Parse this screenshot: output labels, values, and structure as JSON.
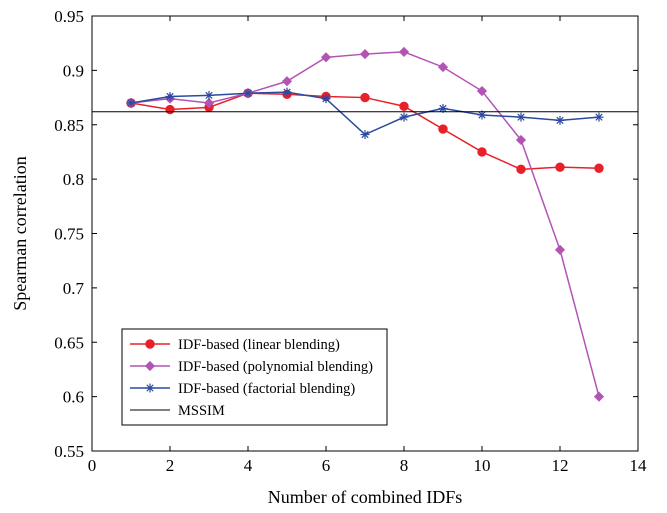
{
  "chart_data": {
    "type": "line",
    "title": "",
    "xlabel": "Number of combined IDFs",
    "ylabel": "Spearman correlation",
    "xlim": [
      0,
      14
    ],
    "ylim": [
      0.55,
      0.95
    ],
    "xticks": [
      0,
      2,
      4,
      6,
      8,
      10,
      12,
      14
    ],
    "yticks": [
      0.55,
      0.6,
      0.65,
      0.7,
      0.75,
      0.8,
      0.85,
      0.9,
      0.95
    ],
    "xtick_labels": [
      "0",
      "2",
      "4",
      "6",
      "8",
      "10",
      "12",
      "14"
    ],
    "ytick_labels": [
      "0.55",
      "0.6",
      "0.65",
      "0.7",
      "0.75",
      "0.8",
      "0.85",
      "0.9",
      "0.95"
    ],
    "grid": false,
    "legend_position": "bottom-left",
    "x": [
      1,
      2,
      3,
      4,
      5,
      6,
      7,
      8,
      9,
      10,
      11,
      12,
      13
    ],
    "series": [
      {
        "name": "IDF-based (linear blending)",
        "color": "#e8202a",
        "marker": "circle",
        "values": [
          0.87,
          0.864,
          0.866,
          0.879,
          0.878,
          0.876,
          0.875,
          0.867,
          0.846,
          0.825,
          0.809,
          0.811,
          0.81
        ]
      },
      {
        "name": "IDF-based (polynomial blending)",
        "color": "#b354b5",
        "marker": "diamond",
        "values": [
          0.87,
          0.874,
          0.87,
          0.879,
          0.89,
          0.912,
          0.915,
          0.917,
          0.903,
          0.881,
          0.836,
          0.735,
          0.6
        ]
      },
      {
        "name": "IDF-based (factorial blending)",
        "color": "#2b4aa0",
        "marker": "asterisk",
        "values": [
          0.87,
          0.876,
          0.877,
          0.879,
          0.88,
          0.874,
          0.841,
          0.857,
          0.865,
          0.859,
          0.857,
          0.854,
          0.857
        ]
      },
      {
        "name": "MSSIM",
        "color": "#000000",
        "marker": "none",
        "constant": 0.862
      }
    ]
  }
}
